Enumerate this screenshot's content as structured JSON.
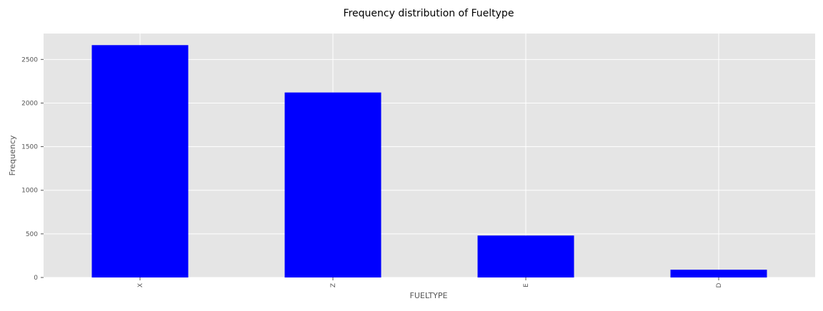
{
  "chart_data": {
    "type": "bar",
    "title": "Frequency distribution of Fueltype",
    "xlabel": "FUELTYPE",
    "ylabel": "Frequency",
    "categories": [
      "X",
      "Z",
      "E",
      "D"
    ],
    "values": [
      2664,
      2121,
      481,
      89
    ],
    "ylim": [
      0,
      2797
    ],
    "yticks": [
      0,
      500,
      1000,
      1500,
      2000,
      2500
    ],
    "bar_color": "#0000ff",
    "background_color": "#e5e5e5",
    "grid_color": "#ffffff",
    "grid": true,
    "legend": "none"
  }
}
